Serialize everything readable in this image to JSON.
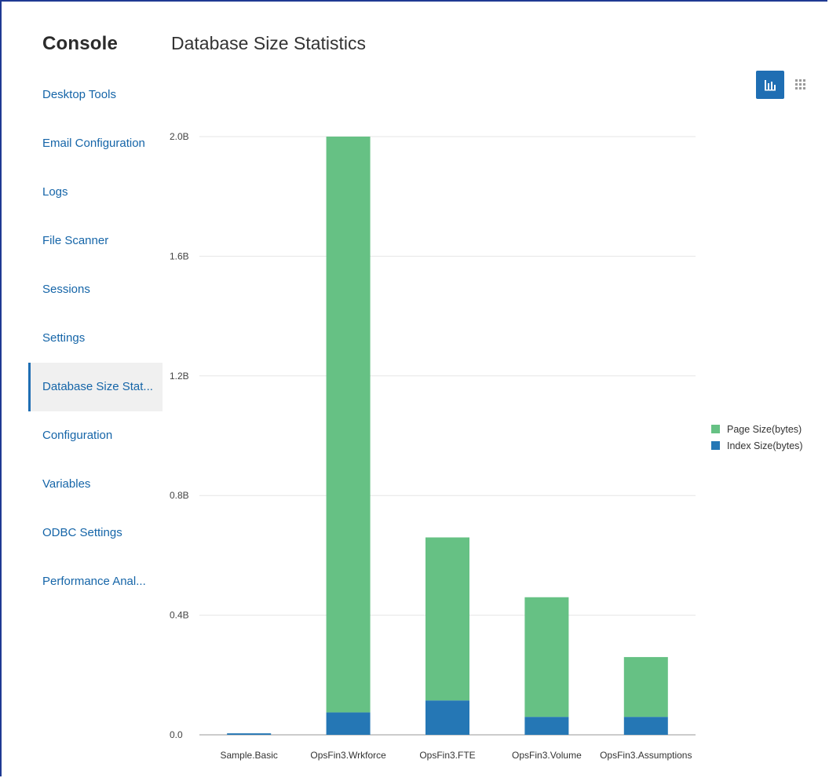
{
  "console": {
    "title": "Console"
  },
  "page": {
    "title": "Database Size Statistics"
  },
  "sidebar": {
    "items": [
      {
        "label": "Desktop Tools",
        "active": false
      },
      {
        "label": "Email Configuration",
        "active": false
      },
      {
        "label": "Logs",
        "active": false
      },
      {
        "label": "File Scanner",
        "active": false
      },
      {
        "label": "Sessions",
        "active": false
      },
      {
        "label": "Settings",
        "active": false
      },
      {
        "label": "Database Size Stat...",
        "active": true
      },
      {
        "label": "Configuration",
        "active": false
      },
      {
        "label": "Variables",
        "active": false
      },
      {
        "label": "ODBC Settings",
        "active": false
      },
      {
        "label": "Performance Anal...",
        "active": false
      }
    ]
  },
  "toolbar": {
    "chart_view_icon": "bar-chart-icon",
    "grid_view_icon": "grid-icon",
    "active_view": "chart"
  },
  "colors": {
    "page_size": "#66c184",
    "index_size": "#2577b5",
    "accent": "#1f6eb3"
  },
  "chart_data": {
    "type": "bar",
    "stacked": true,
    "categories": [
      "Sample.Basic",
      "OpsFin3.Wrkforce",
      "OpsFin3.FTE",
      "OpsFin3.Volume",
      "OpsFin3.Assumptions"
    ],
    "series": [
      {
        "name": "Index Size(bytes)",
        "values": [
          0.005,
          0.075,
          0.115,
          0.06,
          0.06
        ]
      },
      {
        "name": "Page Size(bytes)",
        "values": [
          0.0,
          1.925,
          0.545,
          0.4,
          0.2
        ]
      }
    ],
    "unit": "B",
    "ylim": [
      0,
      2.0
    ],
    "yticks": [
      "0.0",
      "0.4B",
      "0.8B",
      "1.2B",
      "1.6B",
      "2.0B"
    ],
    "ytick_values": [
      0,
      0.4,
      0.8,
      1.2,
      1.6,
      2.0
    ],
    "grid": true,
    "legend_position": "right"
  }
}
